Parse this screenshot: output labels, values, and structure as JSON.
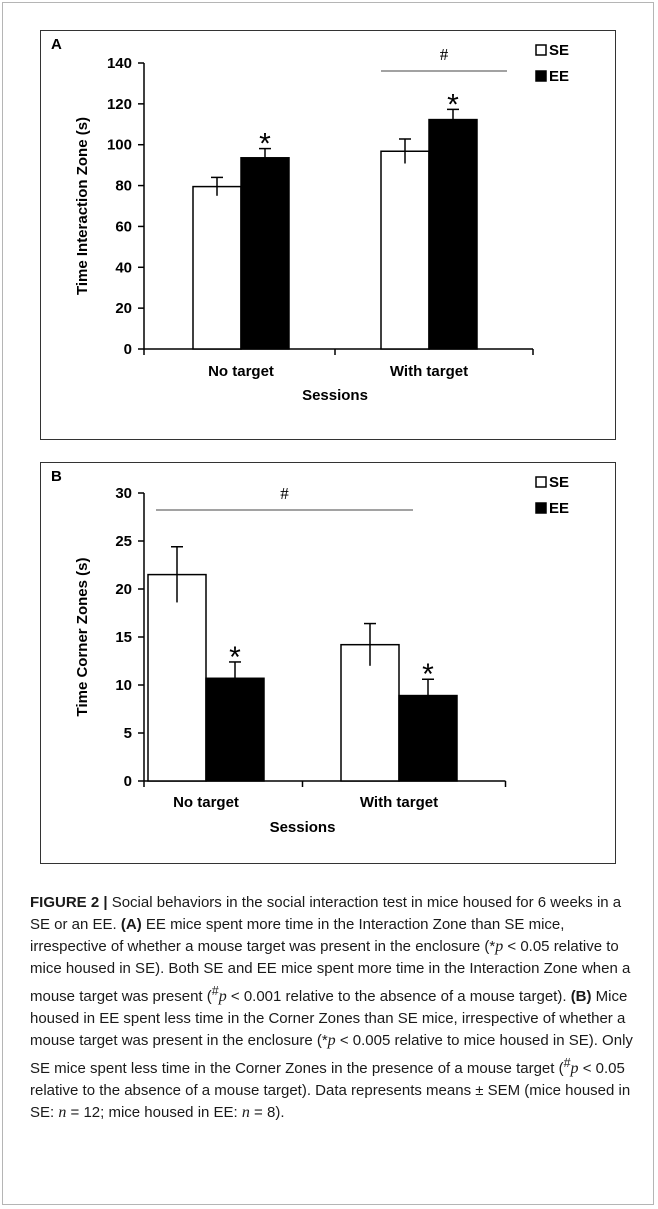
{
  "chart_data": [
    {
      "panel": "A",
      "type": "bar",
      "categories": [
        "No target",
        "With target"
      ],
      "series": [
        {
          "name": "SE",
          "values": [
            79.5,
            96.8
          ],
          "errors": [
            4.5,
            6.0
          ],
          "color": "#ffffff"
        },
        {
          "name": "EE",
          "values": [
            93.6,
            112.3
          ],
          "errors": [
            4.5,
            5.0
          ],
          "color": "#000000"
        }
      ],
      "xlabel": "Sessions",
      "ylabel": "Time Interaction Zone (s)",
      "ylim": [
        0,
        140
      ],
      "yticks": [
        "0",
        "20",
        "40",
        "60",
        "80",
        "100",
        "120",
        "140"
      ],
      "legend_position": "top-right",
      "grid": false,
      "star_marks": [
        "*",
        "*"
      ],
      "hash_mark": "#"
    },
    {
      "panel": "B",
      "type": "bar",
      "categories": [
        "No target",
        "With target"
      ],
      "series": [
        {
          "name": "SE",
          "values": [
            21.5,
            14.2
          ],
          "errors": [
            2.9,
            2.2
          ],
          "color": "#ffffff"
        },
        {
          "name": "EE",
          "values": [
            10.7,
            8.9
          ],
          "errors": [
            1.7,
            1.7
          ],
          "color": "#000000"
        }
      ],
      "xlabel": "Sessions",
      "ylabel": "Time Corner Zones (s)",
      "ylim": [
        0,
        30
      ],
      "yticks": [
        "0",
        "5",
        "10",
        "15",
        "20",
        "25",
        "30"
      ],
      "legend_position": "top-right",
      "grid": false,
      "star_marks": [
        "*",
        "*"
      ],
      "hash_mark": "#"
    }
  ],
  "caption": {
    "lead": "FIGURE 2 |",
    "intro": " Social behaviors in the social interaction test in mice housed for 6 weeks in a SE or an EE. ",
    "ref_a": "(A)",
    "text_a1": " EE mice spent more time in the Interaction Zone than SE mice, irrespective of whether a mouse target was present in the enclosure (*",
    "p_sym": "p",
    "text_a2": " < 0.05 relative to mice housed in SE). Both SE and EE mice spent more time in the Interaction Zone when a mouse target was present (",
    "hash_sup": "#",
    "text_a3": " < 0.001 relative to the absence of a mouse target). ",
    "ref_b": "(B)",
    "text_b1": " Mice housed in EE spent less time in the Corner Zones than SE mice, irrespective of whether a mouse target was present in the enclosure (*",
    "text_b2": " < 0.005 relative to mice housed in SE). Only SE mice spent less time in the Corner Zones in the presence of a mouse target (",
    "text_b3": " < 0.05 relative to the absence of a mouse target). Data represents means ± SEM (mice housed in SE: ",
    "n_sym": "n",
    "text_n1": " = 12; mice housed in EE: ",
    "text_n2": " = 8)."
  }
}
